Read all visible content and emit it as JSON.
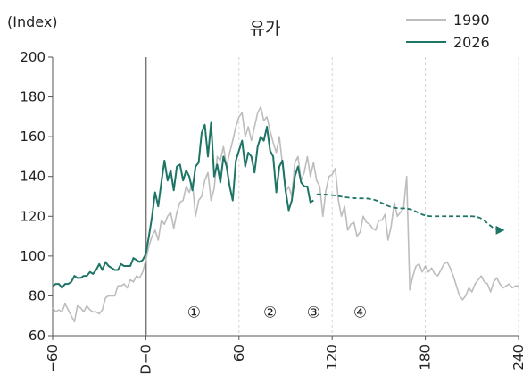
{
  "chart_data": {
    "type": "line",
    "title": "유가",
    "ylabel": "(Index)",
    "xlabel": "",
    "xlim": [
      -60,
      240
    ],
    "ylim": [
      60,
      200
    ],
    "x_ticks": [
      -60,
      0,
      60,
      120,
      180,
      240
    ],
    "x_tick_labels": [
      "−60",
      "D−0",
      "60",
      "120",
      "180",
      "240"
    ],
    "y_ticks": [
      60,
      80,
      100,
      120,
      140,
      160,
      180,
      200
    ],
    "y_tick_labels": [
      "60",
      "80",
      "100",
      "120",
      "140",
      "160",
      "180",
      "200"
    ],
    "grid": "vertical dashed",
    "legend_position": "top-right",
    "event_line_x": 0,
    "annotations": [
      {
        "label": "①",
        "x": 31,
        "y": 72
      },
      {
        "label": "②",
        "x": 80,
        "y": 72
      },
      {
        "label": "③",
        "x": 108,
        "y": 72
      },
      {
        "label": "④",
        "x": 138,
        "y": 72
      }
    ],
    "forecast_arrow": {
      "color": "#1e7565",
      "points": [
        [
          110,
          131
        ],
        [
          140,
          129
        ],
        [
          165,
          124
        ],
        [
          185,
          120
        ],
        [
          210,
          120
        ],
        [
          230,
          113
        ]
      ]
    },
    "series": [
      {
        "name": "1990",
        "color": "#bdbdbd",
        "points": [
          [
            -60,
            74
          ],
          [
            -58,
            72
          ],
          [
            -56,
            73
          ],
          [
            -54,
            72
          ],
          [
            -52,
            76
          ],
          [
            -50,
            73
          ],
          [
            -48,
            70
          ],
          [
            -46,
            67
          ],
          [
            -44,
            75
          ],
          [
            -42,
            74
          ],
          [
            -40,
            72
          ],
          [
            -38,
            75
          ],
          [
            -36,
            73
          ],
          [
            -34,
            72
          ],
          [
            -32,
            72
          ],
          [
            -30,
            71
          ],
          [
            -28,
            73
          ],
          [
            -26,
            79
          ],
          [
            -24,
            80
          ],
          [
            -22,
            80
          ],
          [
            -20,
            80
          ],
          [
            -18,
            85
          ],
          [
            -16,
            85
          ],
          [
            -14,
            86
          ],
          [
            -12,
            84
          ],
          [
            -10,
            88
          ],
          [
            -8,
            87
          ],
          [
            -6,
            90
          ],
          [
            -4,
            89
          ],
          [
            -2,
            92
          ],
          [
            0,
            98
          ],
          [
            2,
            105
          ],
          [
            4,
            110
          ],
          [
            6,
            113
          ],
          [
            8,
            108
          ],
          [
            10,
            118
          ],
          [
            12,
            116
          ],
          [
            14,
            120
          ],
          [
            16,
            122
          ],
          [
            18,
            114
          ],
          [
            20,
            122
          ],
          [
            22,
            127
          ],
          [
            24,
            128
          ],
          [
            26,
            135
          ],
          [
            28,
            132
          ],
          [
            30,
            137
          ],
          [
            32,
            120
          ],
          [
            34,
            128
          ],
          [
            36,
            130
          ],
          [
            38,
            138
          ],
          [
            40,
            142
          ],
          [
            42,
            128
          ],
          [
            44,
            134
          ],
          [
            46,
            150
          ],
          [
            48,
            148
          ],
          [
            50,
            155
          ],
          [
            52,
            145
          ],
          [
            54,
            152
          ],
          [
            56,
            158
          ],
          [
            58,
            165
          ],
          [
            60,
            170
          ],
          [
            62,
            172
          ],
          [
            64,
            160
          ],
          [
            66,
            165
          ],
          [
            68,
            158
          ],
          [
            70,
            165
          ],
          [
            72,
            172
          ],
          [
            74,
            175
          ],
          [
            76,
            168
          ],
          [
            78,
            170
          ],
          [
            80,
            163
          ],
          [
            82,
            157
          ],
          [
            84,
            152
          ],
          [
            86,
            160
          ],
          [
            88,
            146
          ],
          [
            90,
            132
          ],
          [
            92,
            135
          ],
          [
            94,
            130
          ],
          [
            96,
            147
          ],
          [
            98,
            150
          ],
          [
            100,
            138
          ],
          [
            102,
            142
          ],
          [
            104,
            150
          ],
          [
            106,
            140
          ],
          [
            108,
            147
          ],
          [
            110,
            138
          ],
          [
            112,
            135
          ],
          [
            114,
            120
          ],
          [
            116,
            133
          ],
          [
            118,
            140
          ],
          [
            120,
            141
          ],
          [
            122,
            144
          ],
          [
            124,
            128
          ],
          [
            126,
            120
          ],
          [
            128,
            125
          ],
          [
            130,
            113
          ],
          [
            132,
            116
          ],
          [
            134,
            117
          ],
          [
            136,
            110
          ],
          [
            138,
            112
          ],
          [
            140,
            120
          ],
          [
            142,
            117
          ],
          [
            144,
            116
          ],
          [
            146,
            114
          ],
          [
            148,
            113
          ],
          [
            150,
            118
          ],
          [
            152,
            118
          ],
          [
            154,
            121
          ],
          [
            156,
            108
          ],
          [
            158,
            115
          ],
          [
            160,
            127
          ],
          [
            162,
            120
          ],
          [
            164,
            122
          ],
          [
            166,
            124
          ],
          [
            168,
            140
          ],
          [
            170,
            83
          ],
          [
            172,
            90
          ],
          [
            174,
            95
          ],
          [
            176,
            96
          ],
          [
            178,
            92
          ],
          [
            180,
            95
          ],
          [
            182,
            92
          ],
          [
            184,
            94
          ],
          [
            186,
            91
          ],
          [
            188,
            90
          ],
          [
            190,
            93
          ],
          [
            192,
            96
          ],
          [
            194,
            97
          ],
          [
            196,
            94
          ],
          [
            198,
            90
          ],
          [
            200,
            85
          ],
          [
            202,
            80
          ],
          [
            204,
            78
          ],
          [
            206,
            80
          ],
          [
            208,
            84
          ],
          [
            210,
            82
          ],
          [
            212,
            86
          ],
          [
            214,
            88
          ],
          [
            216,
            90
          ],
          [
            218,
            87
          ],
          [
            220,
            86
          ],
          [
            222,
            82
          ],
          [
            224,
            87
          ],
          [
            226,
            89
          ],
          [
            228,
            86
          ],
          [
            230,
            84
          ],
          [
            232,
            85
          ],
          [
            234,
            86
          ],
          [
            236,
            84
          ],
          [
            238,
            85
          ],
          [
            240,
            85
          ]
        ]
      },
      {
        "name": "2026",
        "color": "#1e7565",
        "points": [
          [
            -60,
            85
          ],
          [
            -58,
            86
          ],
          [
            -56,
            86
          ],
          [
            -54,
            84
          ],
          [
            -52,
            86
          ],
          [
            -50,
            86
          ],
          [
            -48,
            87
          ],
          [
            -46,
            90
          ],
          [
            -44,
            89
          ],
          [
            -42,
            89
          ],
          [
            -40,
            90
          ],
          [
            -38,
            90
          ],
          [
            -36,
            92
          ],
          [
            -34,
            91
          ],
          [
            -32,
            93
          ],
          [
            -30,
            96
          ],
          [
            -28,
            93
          ],
          [
            -26,
            97
          ],
          [
            -24,
            95
          ],
          [
            -22,
            94
          ],
          [
            -20,
            93
          ],
          [
            -18,
            93
          ],
          [
            -16,
            96
          ],
          [
            -14,
            95
          ],
          [
            -12,
            95
          ],
          [
            -10,
            95
          ],
          [
            -8,
            99
          ],
          [
            -6,
            98
          ],
          [
            -4,
            97
          ],
          [
            -2,
            98
          ],
          [
            0,
            101
          ],
          [
            2,
            110
          ],
          [
            4,
            120
          ],
          [
            6,
            132
          ],
          [
            8,
            125
          ],
          [
            10,
            137
          ],
          [
            12,
            148
          ],
          [
            14,
            138
          ],
          [
            16,
            143
          ],
          [
            18,
            133
          ],
          [
            20,
            145
          ],
          [
            22,
            146
          ],
          [
            24,
            138
          ],
          [
            26,
            143
          ],
          [
            28,
            140
          ],
          [
            30,
            133
          ],
          [
            32,
            145
          ],
          [
            34,
            147
          ],
          [
            36,
            162
          ],
          [
            38,
            166
          ],
          [
            40,
            150
          ],
          [
            42,
            167
          ],
          [
            44,
            140
          ],
          [
            46,
            146
          ],
          [
            48,
            137
          ],
          [
            50,
            150
          ],
          [
            52,
            145
          ],
          [
            54,
            135
          ],
          [
            56,
            128
          ],
          [
            58,
            148
          ],
          [
            60,
            153
          ],
          [
            62,
            158
          ],
          [
            64,
            145
          ],
          [
            66,
            152
          ],
          [
            68,
            150
          ],
          [
            70,
            142
          ],
          [
            72,
            155
          ],
          [
            74,
            160
          ],
          [
            76,
            158
          ],
          [
            78,
            165
          ],
          [
            80,
            153
          ],
          [
            82,
            150
          ],
          [
            84,
            132
          ],
          [
            86,
            145
          ],
          [
            88,
            148
          ],
          [
            90,
            133
          ],
          [
            92,
            123
          ],
          [
            94,
            128
          ],
          [
            96,
            140
          ],
          [
            98,
            145
          ],
          [
            100,
            137
          ],
          [
            102,
            135
          ],
          [
            104,
            135
          ],
          [
            106,
            127
          ],
          [
            108,
            128
          ]
        ]
      }
    ]
  }
}
